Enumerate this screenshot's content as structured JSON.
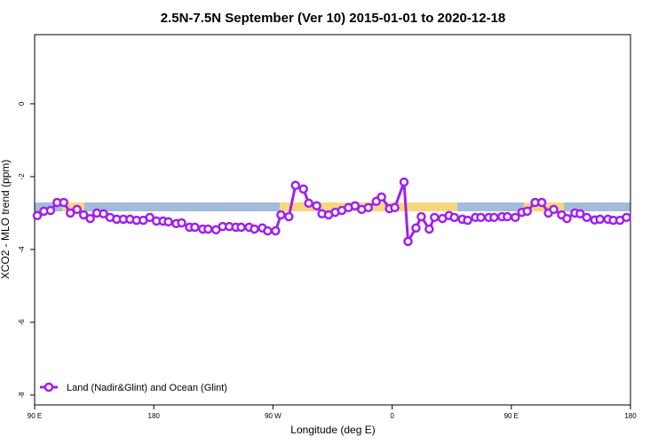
{
  "chart_data": {
    "type": "line",
    "title": "2.5N-7.5N September (Ver 10)   2015-01-01 to 2020-12-18",
    "x_label": "Longitude (deg E)",
    "y_label": "XCO2 - MLO trend (ppm)",
    "x": [
      92,
      97,
      102,
      107,
      112,
      117,
      122,
      127,
      132,
      137,
      142,
      147,
      152,
      157,
      162,
      167,
      172,
      177,
      182,
      187,
      191,
      197,
      201,
      207,
      211,
      217,
      221,
      227,
      232,
      237,
      242,
      246,
      252,
      256,
      262,
      266,
      272,
      276,
      282,
      287,
      293,
      297,
      303,
      307,
      312,
      317,
      322,
      327,
      332,
      337,
      342,
      348,
      352,
      358,
      362,
      369,
      372,
      378,
      382,
      388,
      392,
      398,
      403,
      407,
      413,
      417,
      423,
      427,
      433,
      437,
      443,
      447,
      453,
      458,
      462,
      468,
      473,
      478,
      482,
      488,
      492,
      498,
      502,
      507,
      513,
      517,
      523,
      527,
      532,
      537
    ],
    "series": [
      {
        "name": "Land (Nadir&Glint) and Ocean (Glint)",
        "color": "#a020f0",
        "values": [
          -3.07,
          -2.95,
          -2.93,
          -2.71,
          -2.71,
          -3.0,
          -2.9,
          -3.05,
          -3.15,
          -3.0,
          -3.02,
          -3.12,
          -3.17,
          -3.17,
          -3.17,
          -3.2,
          -3.2,
          -3.12,
          -3.22,
          -3.22,
          -3.24,
          -3.29,
          -3.27,
          -3.39,
          -3.39,
          -3.44,
          -3.44,
          -3.46,
          -3.37,
          -3.37,
          -3.39,
          -3.39,
          -3.39,
          -3.44,
          -3.41,
          -3.49,
          -3.49,
          -3.05,
          -3.1,
          -2.24,
          -2.34,
          -2.73,
          -2.8,
          -3.02,
          -3.05,
          -2.98,
          -2.93,
          -2.85,
          -2.8,
          -2.9,
          -2.85,
          -2.68,
          -2.56,
          -2.88,
          -2.85,
          -2.15,
          -3.78,
          -3.41,
          -3.1,
          -3.44,
          -3.12,
          -3.15,
          -3.07,
          -3.12,
          -3.17,
          -3.2,
          -3.12,
          -3.12,
          -3.12,
          -3.12,
          -3.1,
          -3.1,
          -3.12,
          -2.98,
          -2.95,
          -2.71,
          -2.71,
          -3.0,
          -2.9,
          -3.05,
          -3.15,
          -3.0,
          -3.02,
          -3.12,
          -3.19,
          -3.17,
          -3.17,
          -3.2,
          -3.2,
          -3.12
        ]
      }
    ],
    "xlim": [
      90,
      540
    ],
    "xticks": [
      {
        "value": 90,
        "label": "90 E"
      },
      180,
      {
        "value": 270,
        "label": "90 W"
      },
      {
        "value": 360,
        "label": "0"
      },
      {
        "value": 450,
        "label": "90 E"
      },
      {
        "value": 540,
        "label": "180"
      }
    ],
    "ylim": [
      -8.27,
      1.9
    ],
    "yticks": [
      0,
      -2,
      -4,
      -6,
      -8
    ],
    "legend": "bottom-left"
  }
}
